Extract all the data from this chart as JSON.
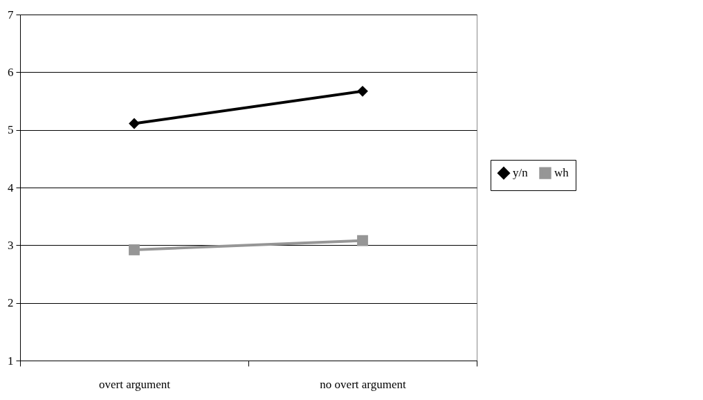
{
  "chart_data": {
    "type": "line",
    "categories": [
      "overt argument",
      "no overt argument"
    ],
    "series": [
      {
        "name": "y/n",
        "color": "#000000",
        "marker": "diamond",
        "values": [
          5.11,
          5.67
        ]
      },
      {
        "name": "wh",
        "color": "#969696",
        "marker": "square",
        "values": [
          2.92,
          3.08
        ]
      }
    ],
    "ylim": [
      1,
      7
    ],
    "yticks": [
      1,
      2,
      3,
      4,
      5,
      6,
      7
    ],
    "grid": "y",
    "legend": "right",
    "line_style": "solid"
  }
}
